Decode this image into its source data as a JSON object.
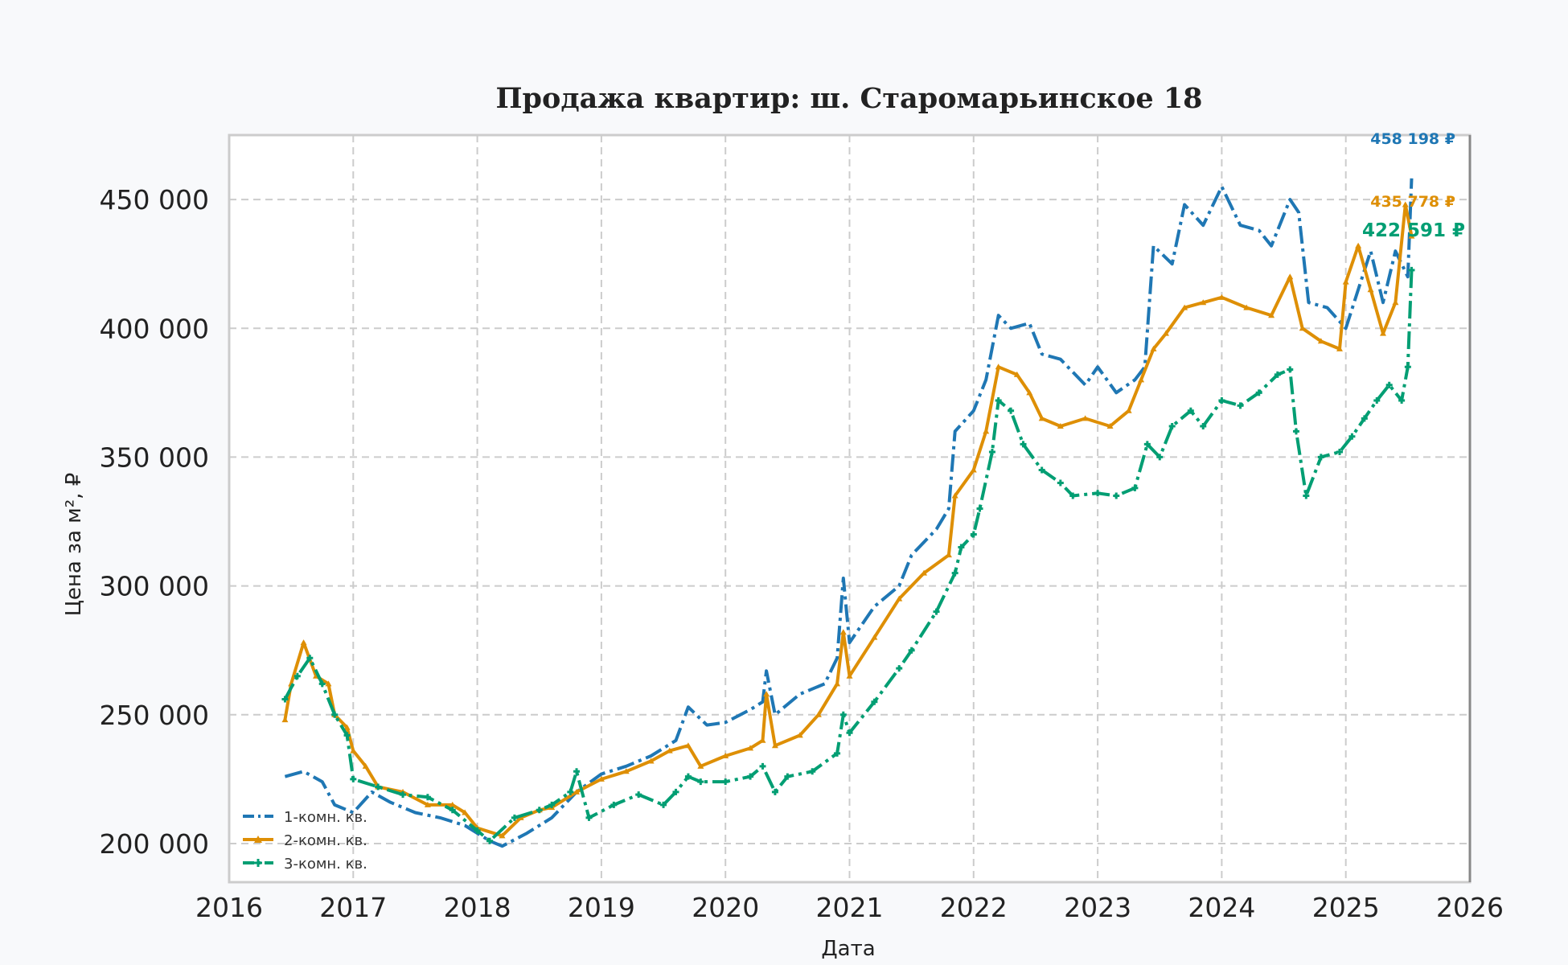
{
  "chart_data": {
    "type": "line",
    "title": "Продажа квартир: ш. Старомарьинское 18",
    "xlabel": "Дата",
    "ylabel": "Цена за м², ₽",
    "xlim": [
      2016,
      2026
    ],
    "ylim": [
      185000,
      475000
    ],
    "x_ticks": [
      2016,
      2017,
      2018,
      2019,
      2020,
      2021,
      2022,
      2023,
      2024,
      2025,
      2026
    ],
    "y_ticks": [
      200000,
      250000,
      300000,
      350000,
      400000,
      450000
    ],
    "y_tick_labels": [
      "200 000",
      "250 000",
      "300 000",
      "350 000",
      "400 000",
      "450 000"
    ],
    "grid": true,
    "legend_position": "lower-left",
    "series": [
      {
        "name": "1-комн. кв.",
        "color": "#1f77b4",
        "line_style": "dashdot",
        "end_label": "458 198 ₽",
        "end_value": 458198,
        "points": [
          [
            2016.45,
            226000
          ],
          [
            2016.6,
            228000
          ],
          [
            2016.75,
            224000
          ],
          [
            2016.85,
            215000
          ],
          [
            2017.0,
            212000
          ],
          [
            2017.15,
            220000
          ],
          [
            2017.3,
            216000
          ],
          [
            2017.5,
            212000
          ],
          [
            2017.7,
            210000
          ],
          [
            2017.9,
            207000
          ],
          [
            2018.1,
            201000
          ],
          [
            2018.2,
            199000
          ],
          [
            2018.4,
            204000
          ],
          [
            2018.6,
            210000
          ],
          [
            2018.8,
            220000
          ],
          [
            2019.0,
            227000
          ],
          [
            2019.2,
            230000
          ],
          [
            2019.4,
            234000
          ],
          [
            2019.6,
            240000
          ],
          [
            2019.7,
            253000
          ],
          [
            2019.85,
            246000
          ],
          [
            2020.0,
            247000
          ],
          [
            2020.2,
            252000
          ],
          [
            2020.3,
            255000
          ],
          [
            2020.33,
            267000
          ],
          [
            2020.4,
            250000
          ],
          [
            2020.6,
            258000
          ],
          [
            2020.8,
            262000
          ],
          [
            2020.9,
            272000
          ],
          [
            2020.95,
            303000
          ],
          [
            2021.0,
            278000
          ],
          [
            2021.2,
            292000
          ],
          [
            2021.4,
            300000
          ],
          [
            2021.5,
            312000
          ],
          [
            2021.7,
            322000
          ],
          [
            2021.8,
            330000
          ],
          [
            2021.85,
            360000
          ],
          [
            2022.0,
            368000
          ],
          [
            2022.1,
            380000
          ],
          [
            2022.2,
            405000
          ],
          [
            2022.3,
            400000
          ],
          [
            2022.45,
            402000
          ],
          [
            2022.55,
            390000
          ],
          [
            2022.7,
            388000
          ],
          [
            2022.9,
            378000
          ],
          [
            2023.0,
            385000
          ],
          [
            2023.15,
            375000
          ],
          [
            2023.3,
            380000
          ],
          [
            2023.38,
            385000
          ],
          [
            2023.45,
            432000
          ],
          [
            2023.6,
            425000
          ],
          [
            2023.7,
            448000
          ],
          [
            2023.85,
            440000
          ],
          [
            2024.0,
            455000
          ],
          [
            2024.15,
            440000
          ],
          [
            2024.3,
            438000
          ],
          [
            2024.4,
            432000
          ],
          [
            2024.55,
            450000
          ],
          [
            2024.62,
            445000
          ],
          [
            2024.7,
            410000
          ],
          [
            2024.85,
            408000
          ],
          [
            2025.0,
            400000
          ],
          [
            2025.1,
            415000
          ],
          [
            2025.2,
            430000
          ],
          [
            2025.3,
            410000
          ],
          [
            2025.4,
            430000
          ],
          [
            2025.5,
            420000
          ],
          [
            2025.53,
            458198
          ]
        ]
      },
      {
        "name": "2-комн. кв.",
        "color": "#de8f05",
        "line_style": "solid",
        "marker": "triangle",
        "end_label": "435 778 ₽",
        "end_value": 435778,
        "points": [
          [
            2016.45,
            248000
          ],
          [
            2016.5,
            262000
          ],
          [
            2016.6,
            278000
          ],
          [
            2016.7,
            265000
          ],
          [
            2016.8,
            262000
          ],
          [
            2016.85,
            250000
          ],
          [
            2016.95,
            245000
          ],
          [
            2017.0,
            236000
          ],
          [
            2017.1,
            230000
          ],
          [
            2017.2,
            222000
          ],
          [
            2017.4,
            220000
          ],
          [
            2017.6,
            215000
          ],
          [
            2017.8,
            215000
          ],
          [
            2017.9,
            212000
          ],
          [
            2018.0,
            206000
          ],
          [
            2018.2,
            203000
          ],
          [
            2018.35,
            210000
          ],
          [
            2018.5,
            213000
          ],
          [
            2018.6,
            214000
          ],
          [
            2018.8,
            220000
          ],
          [
            2019.0,
            225000
          ],
          [
            2019.2,
            228000
          ],
          [
            2019.4,
            232000
          ],
          [
            2019.55,
            236000
          ],
          [
            2019.7,
            238000
          ],
          [
            2019.8,
            230000
          ],
          [
            2020.0,
            234000
          ],
          [
            2020.2,
            237000
          ],
          [
            2020.3,
            240000
          ],
          [
            2020.33,
            258000
          ],
          [
            2020.4,
            238000
          ],
          [
            2020.6,
            242000
          ],
          [
            2020.75,
            250000
          ],
          [
            2020.9,
            262000
          ],
          [
            2020.95,
            282000
          ],
          [
            2021.0,
            265000
          ],
          [
            2021.2,
            280000
          ],
          [
            2021.4,
            295000
          ],
          [
            2021.6,
            305000
          ],
          [
            2021.8,
            312000
          ],
          [
            2021.85,
            335000
          ],
          [
            2022.0,
            345000
          ],
          [
            2022.1,
            360000
          ],
          [
            2022.2,
            385000
          ],
          [
            2022.35,
            382000
          ],
          [
            2022.45,
            375000
          ],
          [
            2022.55,
            365000
          ],
          [
            2022.7,
            362000
          ],
          [
            2022.9,
            365000
          ],
          [
            2023.1,
            362000
          ],
          [
            2023.25,
            368000
          ],
          [
            2023.35,
            380000
          ],
          [
            2023.45,
            392000
          ],
          [
            2023.55,
            398000
          ],
          [
            2023.7,
            408000
          ],
          [
            2023.85,
            410000
          ],
          [
            2024.0,
            412000
          ],
          [
            2024.2,
            408000
          ],
          [
            2024.4,
            405000
          ],
          [
            2024.55,
            420000
          ],
          [
            2024.65,
            400000
          ],
          [
            2024.8,
            395000
          ],
          [
            2024.95,
            392000
          ],
          [
            2025.0,
            418000
          ],
          [
            2025.1,
            432000
          ],
          [
            2025.2,
            415000
          ],
          [
            2025.3,
            398000
          ],
          [
            2025.4,
            410000
          ],
          [
            2025.48,
            448000
          ],
          [
            2025.53,
            435778
          ]
        ]
      },
      {
        "name": "3-комн. кв.",
        "color": "#029e73",
        "line_style": "dashdot",
        "marker": "plus",
        "end_label": "422 591 ₽",
        "end_value": 422591,
        "points": [
          [
            2016.45,
            256000
          ],
          [
            2016.55,
            265000
          ],
          [
            2016.65,
            272000
          ],
          [
            2016.75,
            262000
          ],
          [
            2016.85,
            250000
          ],
          [
            2016.95,
            242000
          ],
          [
            2017.0,
            225000
          ],
          [
            2017.2,
            222000
          ],
          [
            2017.4,
            219000
          ],
          [
            2017.6,
            218000
          ],
          [
            2017.8,
            213000
          ],
          [
            2018.0,
            205000
          ],
          [
            2018.1,
            201000
          ],
          [
            2018.3,
            210000
          ],
          [
            2018.5,
            213000
          ],
          [
            2018.6,
            215000
          ],
          [
            2018.75,
            220000
          ],
          [
            2018.8,
            228000
          ],
          [
            2018.9,
            210000
          ],
          [
            2019.1,
            215000
          ],
          [
            2019.3,
            219000
          ],
          [
            2019.5,
            215000
          ],
          [
            2019.6,
            220000
          ],
          [
            2019.7,
            226000
          ],
          [
            2019.8,
            224000
          ],
          [
            2020.0,
            224000
          ],
          [
            2020.2,
            226000
          ],
          [
            2020.3,
            230000
          ],
          [
            2020.4,
            220000
          ],
          [
            2020.5,
            226000
          ],
          [
            2020.7,
            228000
          ],
          [
            2020.9,
            235000
          ],
          [
            2020.95,
            250000
          ],
          [
            2021.0,
            243000
          ],
          [
            2021.2,
            255000
          ],
          [
            2021.4,
            268000
          ],
          [
            2021.5,
            275000
          ],
          [
            2021.7,
            290000
          ],
          [
            2021.85,
            305000
          ],
          [
            2021.9,
            315000
          ],
          [
            2022.0,
            320000
          ],
          [
            2022.05,
            330000
          ],
          [
            2022.15,
            352000
          ],
          [
            2022.2,
            372000
          ],
          [
            2022.3,
            368000
          ],
          [
            2022.4,
            355000
          ],
          [
            2022.55,
            345000
          ],
          [
            2022.7,
            340000
          ],
          [
            2022.8,
            335000
          ],
          [
            2023.0,
            336000
          ],
          [
            2023.15,
            335000
          ],
          [
            2023.3,
            338000
          ],
          [
            2023.4,
            355000
          ],
          [
            2023.5,
            350000
          ],
          [
            2023.6,
            362000
          ],
          [
            2023.75,
            368000
          ],
          [
            2023.85,
            362000
          ],
          [
            2024.0,
            372000
          ],
          [
            2024.15,
            370000
          ],
          [
            2024.3,
            375000
          ],
          [
            2024.45,
            382000
          ],
          [
            2024.55,
            384000
          ],
          [
            2024.6,
            360000
          ],
          [
            2024.68,
            335000
          ],
          [
            2024.8,
            350000
          ],
          [
            2024.95,
            352000
          ],
          [
            2025.05,
            358000
          ],
          [
            2025.15,
            365000
          ],
          [
            2025.25,
            372000
          ],
          [
            2025.35,
            378000
          ],
          [
            2025.45,
            372000
          ],
          [
            2025.5,
            385000
          ],
          [
            2025.53,
            422591
          ]
        ]
      }
    ]
  }
}
